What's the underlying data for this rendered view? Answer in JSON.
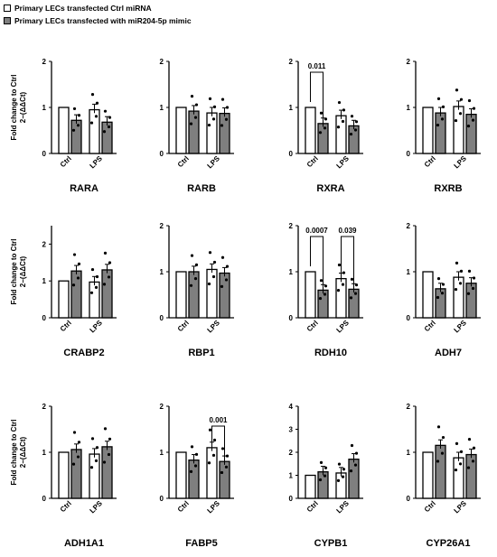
{
  "legend": {
    "ctrl_label": "Primary LECs transfected Ctrl miRNA",
    "mimic_label": "Primary LECs transfected with miR204-5p mimic"
  },
  "ylabel_line1": "Fold change to Ctrl",
  "ylabel_line2": "2−(ΔΔCt)",
  "colors": {
    "ctrl": "#ffffff",
    "mimic": "#7f7f7f",
    "axis": "#000000"
  },
  "chart_data": [
    {
      "type": "bar",
      "title": "RARA",
      "categories": [
        "Ctrl",
        "LPS"
      ],
      "ylim": [
        0,
        2
      ],
      "yticks": [
        0,
        1,
        2
      ],
      "series": [
        {
          "name": "Primary LECs transfected Ctrl miRNA",
          "values": [
            1.0,
            0.95
          ]
        },
        {
          "name": "Primary LECs transfected with miR204-5p mimic",
          "values": [
            0.72,
            0.68
          ]
        }
      ]
    },
    {
      "type": "bar",
      "title": "RARB",
      "categories": [
        "Ctrl",
        "LPS"
      ],
      "ylim": [
        0,
        2
      ],
      "yticks": [
        0,
        1,
        2
      ],
      "series": [
        {
          "name": "Primary LECs transfected Ctrl miRNA",
          "values": [
            1.0,
            0.88
          ]
        },
        {
          "name": "Primary LECs transfected with miR204-5p mimic",
          "values": [
            0.92,
            0.87
          ]
        }
      ]
    },
    {
      "type": "bar",
      "title": "RXRA",
      "categories": [
        "Ctrl",
        "LPS"
      ],
      "ylim": [
        0,
        2
      ],
      "yticks": [
        0,
        1,
        2
      ],
      "series": [
        {
          "name": "Primary LECs transfected Ctrl miRNA",
          "values": [
            1.0,
            0.82
          ]
        },
        {
          "name": "Primary LECs transfected with miR204-5p mimic",
          "values": [
            0.65,
            0.6
          ]
        }
      ],
      "annotations": [
        {
          "text": "0.011",
          "group": 0
        }
      ]
    },
    {
      "type": "bar",
      "title": "RXRB",
      "categories": [
        "Ctrl",
        "LPS"
      ],
      "ylim": [
        0,
        2
      ],
      "yticks": [
        0,
        1,
        2
      ],
      "series": [
        {
          "name": "Primary LECs transfected Ctrl miRNA",
          "values": [
            1.0,
            1.02
          ]
        },
        {
          "name": "Primary LECs transfected with miR204-5p mimic",
          "values": [
            0.88,
            0.85
          ]
        }
      ]
    },
    {
      "type": "bar",
      "title": "CRABP2",
      "categories": [
        "Ctrl",
        "LPS"
      ],
      "ylim": [
        0,
        2.5
      ],
      "yticks": [
        0,
        1,
        2
      ],
      "series": [
        {
          "name": "Primary LECs transfected Ctrl miRNA",
          "values": [
            1.0,
            0.97
          ]
        },
        {
          "name": "Primary LECs transfected with miR204-5p mimic",
          "values": [
            1.27,
            1.3
          ]
        }
      ]
    },
    {
      "type": "bar",
      "title": "RBP1",
      "categories": [
        "Ctrl",
        "LPS"
      ],
      "ylim": [
        0,
        2
      ],
      "yticks": [
        0,
        1,
        2
      ],
      "series": [
        {
          "name": "Primary LECs transfected Ctrl miRNA",
          "values": [
            1.0,
            1.05
          ]
        },
        {
          "name": "Primary LECs transfected with miR204-5p mimic",
          "values": [
            1.0,
            0.97
          ]
        }
      ]
    },
    {
      "type": "bar",
      "title": "RDH10",
      "categories": [
        "Ctrl",
        "LPS"
      ],
      "ylim": [
        0,
        2
      ],
      "yticks": [
        0,
        1,
        2
      ],
      "series": [
        {
          "name": "Primary LECs transfected Ctrl miRNA",
          "values": [
            1.0,
            0.85
          ]
        },
        {
          "name": "Primary LECs transfected with miR204-5p mimic",
          "values": [
            0.6,
            0.62
          ]
        }
      ],
      "annotations": [
        {
          "text": "0.0007",
          "group": 0
        },
        {
          "text": "0.039",
          "group": 1
        }
      ]
    },
    {
      "type": "bar",
      "title": "ADH7",
      "categories": [
        "Ctrl",
        "LPS"
      ],
      "ylim": [
        0,
        2
      ],
      "yticks": [
        0,
        1,
        2
      ],
      "series": [
        {
          "name": "Primary LECs transfected Ctrl miRNA",
          "values": [
            1.0,
            0.88
          ]
        },
        {
          "name": "Primary LECs transfected with miR204-5p mimic",
          "values": [
            0.63,
            0.75
          ]
        }
      ]
    },
    {
      "type": "bar",
      "title": "ADH1A1",
      "categories": [
        "Ctrl",
        "LPS"
      ],
      "ylim": [
        0,
        2
      ],
      "yticks": [
        0,
        1,
        2
      ],
      "series": [
        {
          "name": "Primary LECs transfected Ctrl miRNA",
          "values": [
            1.0,
            0.96
          ]
        },
        {
          "name": "Primary LECs transfected with miR204-5p mimic",
          "values": [
            1.06,
            1.12
          ]
        }
      ]
    },
    {
      "type": "bar",
      "title": "FABP5",
      "categories": [
        "Ctrl",
        "LPS"
      ],
      "ylim": [
        0,
        2
      ],
      "yticks": [
        0,
        1,
        2
      ],
      "series": [
        {
          "name": "Primary LECs transfected Ctrl miRNA",
          "values": [
            1.0,
            1.1
          ]
        },
        {
          "name": "Primary LECs transfected with miR204-5p mimic",
          "values": [
            0.83,
            0.8
          ]
        }
      ],
      "annotations": [
        {
          "text": "0.001",
          "group": 1
        }
      ]
    },
    {
      "type": "bar",
      "title": "CYPB1",
      "categories": [
        "Ctrl",
        "LPS"
      ],
      "ylim": [
        0,
        4
      ],
      "yticks": [
        0,
        1,
        2,
        3,
        4
      ],
      "series": [
        {
          "name": "Primary LECs transfected Ctrl miRNA",
          "values": [
            1.0,
            1.1
          ]
        },
        {
          "name": "Primary LECs transfected with miR204-5p mimic",
          "values": [
            1.15,
            1.7
          ]
        }
      ]
    },
    {
      "type": "bar",
      "title": "CYP26A1",
      "categories": [
        "Ctrl",
        "LPS"
      ],
      "ylim": [
        0,
        2
      ],
      "yticks": [
        0,
        1,
        2
      ],
      "series": [
        {
          "name": "Primary LECs transfected Ctrl miRNA",
          "values": [
            1.0,
            0.88
          ]
        },
        {
          "name": "Primary LECs transfected with miR204-5p mimic",
          "values": [
            1.15,
            0.95
          ]
        }
      ]
    }
  ]
}
